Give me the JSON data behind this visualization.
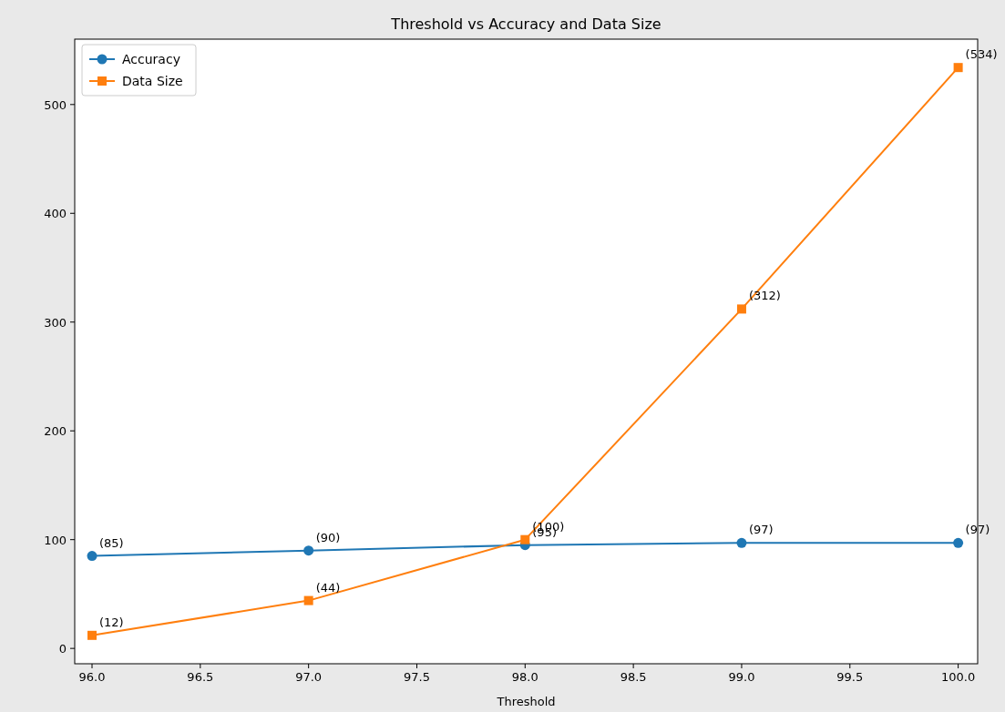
{
  "chart_data": {
    "type": "line",
    "title": "Threshold vs Accuracy and Data Size",
    "xlabel": "Threshold",
    "x": [
      96,
      97,
      98,
      99,
      100
    ],
    "series": [
      {
        "name": "Accuracy",
        "color": "#1f77b4",
        "marker": "circle",
        "values": [
          85,
          90,
          95,
          97,
          97
        ],
        "value_labels": [
          "(85)",
          "(90)",
          "(95)",
          "(97)",
          "(97)"
        ]
      },
      {
        "name": "Data Size",
        "color": "#ff7f0e",
        "marker": "square",
        "values": [
          12,
          44,
          100,
          312,
          534
        ],
        "value_labels": [
          "(12)",
          "(44)",
          "(100)",
          "(312)",
          "(534)"
        ]
      }
    ],
    "xlim": [
      95.92,
      100.09
    ],
    "ylim": [
      -14.1,
      560.1
    ],
    "xticks": [
      {
        "value": 96,
        "label": "96.0"
      },
      {
        "value": 96.5,
        "label": "96.5"
      },
      {
        "value": 97,
        "label": "97.0"
      },
      {
        "value": 97.5,
        "label": "97.5"
      },
      {
        "value": 98,
        "label": "98.0"
      },
      {
        "value": 98.5,
        "label": "98.5"
      },
      {
        "value": 99,
        "label": "99.0"
      },
      {
        "value": 99.5,
        "label": "99.5"
      },
      {
        "value": 100,
        "label": "100.0"
      }
    ],
    "yticks": [
      0,
      100,
      200,
      300,
      400,
      500
    ],
    "grid": false,
    "legend": "top left",
    "line_style": "solid"
  }
}
